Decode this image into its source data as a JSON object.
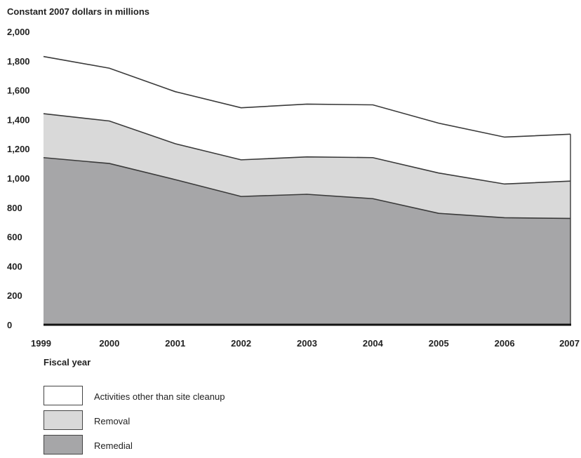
{
  "chart_data": {
    "type": "area",
    "stacked": true,
    "ylabel": "Constant 2007 dollars in millions",
    "xlabel": "Fiscal year",
    "x": [
      "1999",
      "2000",
      "2001",
      "2002",
      "2003",
      "2004",
      "2005",
      "2006",
      "2007"
    ],
    "ylim": [
      0,
      2000
    ],
    "yticks": [
      "0",
      "200",
      "400",
      "600",
      "800",
      "1,000",
      "1,200",
      "1,400",
      "1,600",
      "1,800",
      "2,000"
    ],
    "ytick_values": [
      0,
      200,
      400,
      600,
      800,
      1000,
      1200,
      1400,
      1600,
      1800,
      2000
    ],
    "series": [
      {
        "name": "Remedial",
        "values": [
          1140,
          1100,
          990,
          875,
          890,
          860,
          760,
          730,
          725
        ],
        "color": "#a6a6a8"
      },
      {
        "name": "Removal",
        "values": [
          300,
          290,
          245,
          250,
          255,
          280,
          275,
          230,
          255
        ],
        "color": "#d9d9d9"
      },
      {
        "name": "Activities other than site cleanup",
        "values": [
          390,
          360,
          355,
          355,
          360,
          360,
          340,
          320,
          320
        ],
        "color": "#ffffff"
      }
    ],
    "grid": false,
    "legend_position": "bottom-left"
  },
  "legend": {
    "items": [
      {
        "label": "Activities other than site cleanup",
        "color": "#ffffff"
      },
      {
        "label": "Removal",
        "color": "#d9d9d9"
      },
      {
        "label": "Remedial",
        "color": "#a6a6a8"
      }
    ]
  }
}
